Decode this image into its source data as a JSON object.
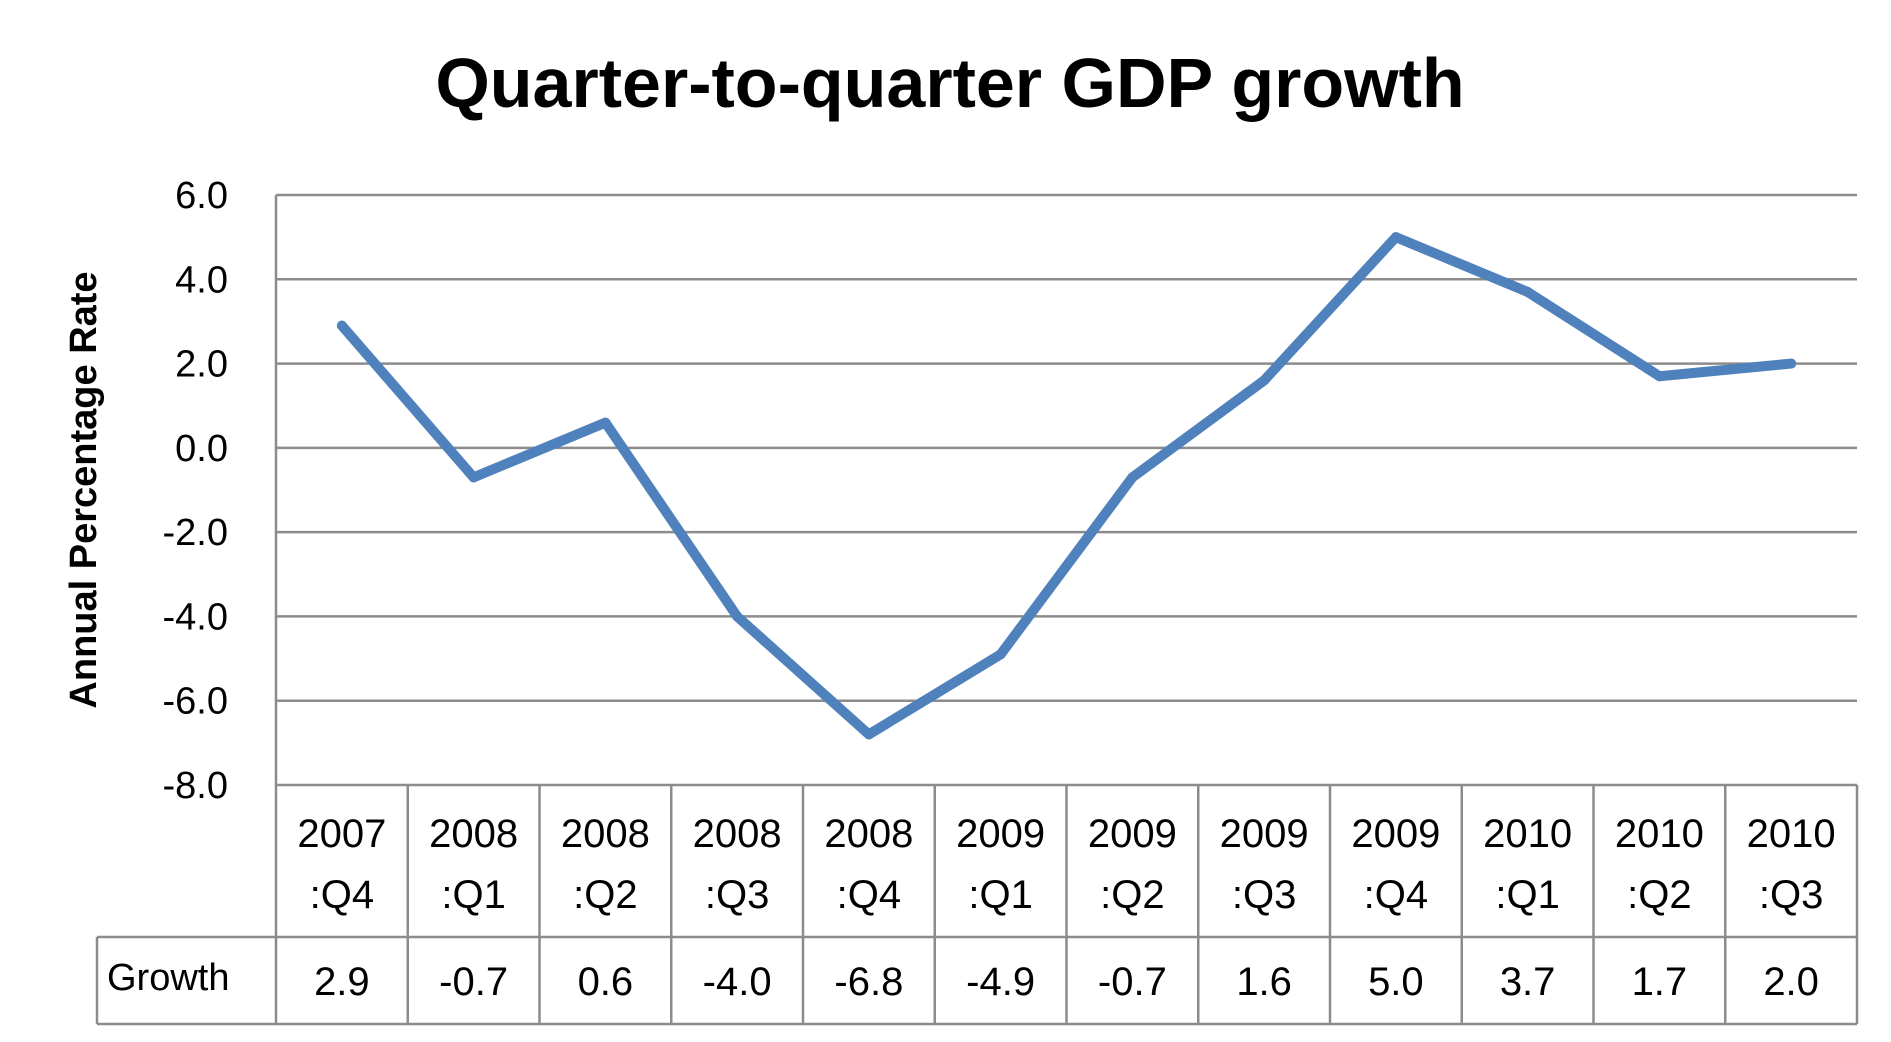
{
  "chart_data": {
    "type": "line",
    "title": "Quarter-to-quarter GDP growth",
    "xlabel": "",
    "ylabel": "Annual Percentage Rate",
    "ylim": [
      -8.0,
      6.0
    ],
    "yticks": [
      "6.0",
      "4.0",
      "2.0",
      "0.0",
      "-2.0",
      "-4.0",
      "-6.0",
      "-8.0"
    ],
    "ytick_values": [
      6,
      4,
      2,
      0,
      -2,
      -4,
      -6,
      -8
    ],
    "grid": true,
    "categories": [
      [
        "2007",
        ":Q4"
      ],
      [
        "2008",
        ":Q1"
      ],
      [
        "2008",
        ":Q2"
      ],
      [
        "2008",
        ":Q3"
      ],
      [
        "2008",
        ":Q4"
      ],
      [
        "2009",
        ":Q1"
      ],
      [
        "2009",
        ":Q2"
      ],
      [
        "2009",
        ":Q3"
      ],
      [
        "2009",
        ":Q4"
      ],
      [
        "2010",
        ":Q1"
      ],
      [
        "2010",
        ":Q2"
      ],
      [
        "2010",
        ":Q3"
      ]
    ],
    "series": [
      {
        "name": "Growth",
        "color": "#4f81bd",
        "values": [
          2.9,
          -0.7,
          0.6,
          -4.0,
          -6.8,
          -4.9,
          -0.7,
          1.6,
          5.0,
          3.7,
          1.7,
          2.0
        ],
        "labels": [
          "2.9",
          "-0.7",
          "0.6",
          "-4.0",
          "-6.8",
          "-4.9",
          "-0.7",
          "1.6",
          "5.0",
          "3.7",
          "1.7",
          "2.0"
        ]
      }
    ],
    "data_table": true
  }
}
